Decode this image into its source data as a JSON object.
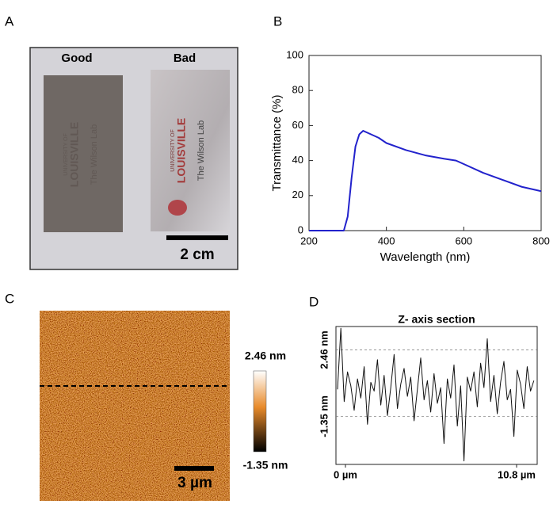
{
  "panel_labels": [
    "A",
    "B",
    "C",
    "D"
  ],
  "photo": {
    "labels": [
      "Good",
      "Bad"
    ],
    "film_text": [
      "UNIVERSITY OF",
      "LOUISVILLE",
      "The Wilson Lab"
    ],
    "scale_bar": "2 cm"
  },
  "afm": {
    "colorbar_max": "2.46 nm",
    "colorbar_min": "-1.35 nm",
    "scale_bar": "3 µm"
  },
  "chart_data": [
    {
      "type": "line",
      "xlabel": "Wavelength (nm)",
      "ylabel": "Transmittance (%)",
      "x": [
        200,
        290,
        300,
        310,
        320,
        330,
        340,
        350,
        380,
        400,
        450,
        500,
        550,
        580,
        600,
        650,
        700,
        750,
        800
      ],
      "values": [
        0,
        0,
        8,
        30,
        48,
        55,
        57,
        56,
        53,
        50,
        46,
        43,
        41,
        40,
        38,
        33,
        29,
        25,
        22.5
      ],
      "color": "#2222cc",
      "xlim": [
        200,
        800
      ],
      "ylim": [
        0,
        100
      ],
      "xticks": [
        200,
        400,
        600,
        800
      ],
      "yticks": [
        0,
        20,
        40,
        60,
        80,
        100
      ]
    },
    {
      "type": "line",
      "title": "Z- axis section",
      "x": [
        -0.5,
        -0.29,
        -0.08,
        0.13,
        0.34,
        0.55,
        0.76,
        0.97,
        1.18,
        1.39,
        1.6,
        1.81,
        2.02,
        2.23,
        2.44,
        2.65,
        2.86,
        3.07,
        3.28,
        3.49,
        3.7,
        3.91,
        4.12,
        4.33,
        4.54,
        4.75,
        4.96,
        5.17,
        5.38,
        5.59,
        5.8,
        6.01,
        6.22,
        6.43,
        6.64,
        6.85,
        7.06,
        7.27,
        7.48,
        7.69,
        7.9,
        8.11,
        8.32,
        8.53,
        8.74,
        8.95,
        9.16,
        9.37,
        9.58,
        9.79,
        10.0,
        10.21,
        10.42,
        10.63,
        10.84,
        11.05,
        11.26,
        11.47,
        11.68,
        11.89
      ],
      "values": [
        0.2,
        3.7,
        -0.5,
        1.2,
        0.4,
        -1.0,
        0.8,
        -0.3,
        1.5,
        -1.8,
        0.6,
        0.1,
        1.9,
        -0.7,
        1.0,
        -1.3,
        0.3,
        2.2,
        -0.9,
        0.5,
        1.4,
        -0.2,
        0.9,
        -1.6,
        0.2,
        2.0,
        -0.4,
        0.7,
        -1.1,
        1.1,
        -0.6,
        0.3,
        -2.9,
        0.8,
        -0.3,
        1.6,
        -1.9,
        0.4,
        -3.9,
        0.9,
        0.1,
        1.2,
        -0.8,
        1.7,
        0.3,
        3.1,
        -0.5,
        1.0,
        -1.2,
        0.6,
        1.8,
        -0.4,
        0.2,
        -2.5,
        1.3,
        0.5,
        -0.9,
        1.5,
        0.1,
        0.7
      ],
      "color": "#111111",
      "xlim": [
        -0.6,
        12.1
      ],
      "ylim": [
        -4.1,
        3.8
      ],
      "xticks": [
        {
          "value": 0,
          "label": "0 µm"
        },
        {
          "value": 10.8,
          "label": "10.8 µm"
        }
      ],
      "yticks": [
        {
          "value": 2.46,
          "label": "2.46 nm"
        },
        {
          "value": -1.35,
          "label": "-1.35 nm"
        }
      ]
    }
  ]
}
